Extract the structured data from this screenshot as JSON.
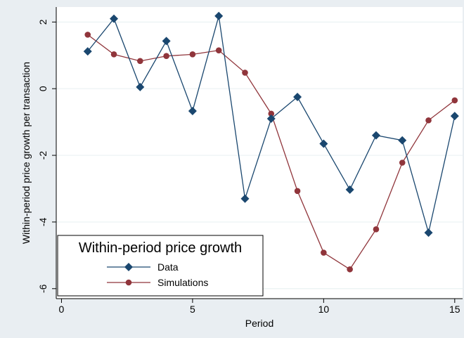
{
  "chart_data": {
    "type": "line",
    "xlabel": "Period",
    "ylabel": "Within-period price growth per transaction",
    "xlim": [
      -0.2,
      15.3
    ],
    "ylim": [
      -6.3,
      2.45
    ],
    "xticks": [
      0,
      5,
      10,
      15
    ],
    "yticks": [
      2,
      0,
      -2,
      -4,
      -6
    ],
    "grid": "horizontal",
    "legend": {
      "title": "Within-period price growth",
      "placement": "bottom-left",
      "entries": [
        "Data",
        "Simulations"
      ]
    },
    "series": [
      {
        "name": "Data",
        "marker": "diamond",
        "color": "#1a476f",
        "x": [
          1,
          2,
          3,
          4,
          5,
          6,
          7,
          8,
          9,
          10,
          11,
          12,
          13,
          14,
          15
        ],
        "y": [
          1.12,
          2.1,
          0.05,
          1.43,
          -0.67,
          2.18,
          -3.3,
          -0.9,
          -0.25,
          -1.65,
          -3.03,
          -1.4,
          -1.55,
          -4.32,
          -0.82
        ]
      },
      {
        "name": "Simulations",
        "marker": "circle",
        "color": "#90353b",
        "x": [
          1,
          2,
          3,
          4,
          5,
          6,
          7,
          8,
          9,
          10,
          11,
          12,
          13,
          14,
          15
        ],
        "y": [
          1.62,
          1.03,
          0.83,
          0.98,
          1.03,
          1.15,
          0.48,
          -0.75,
          -3.07,
          -4.92,
          -5.42,
          -4.22,
          -2.22,
          -0.95,
          -0.35
        ]
      }
    ]
  }
}
